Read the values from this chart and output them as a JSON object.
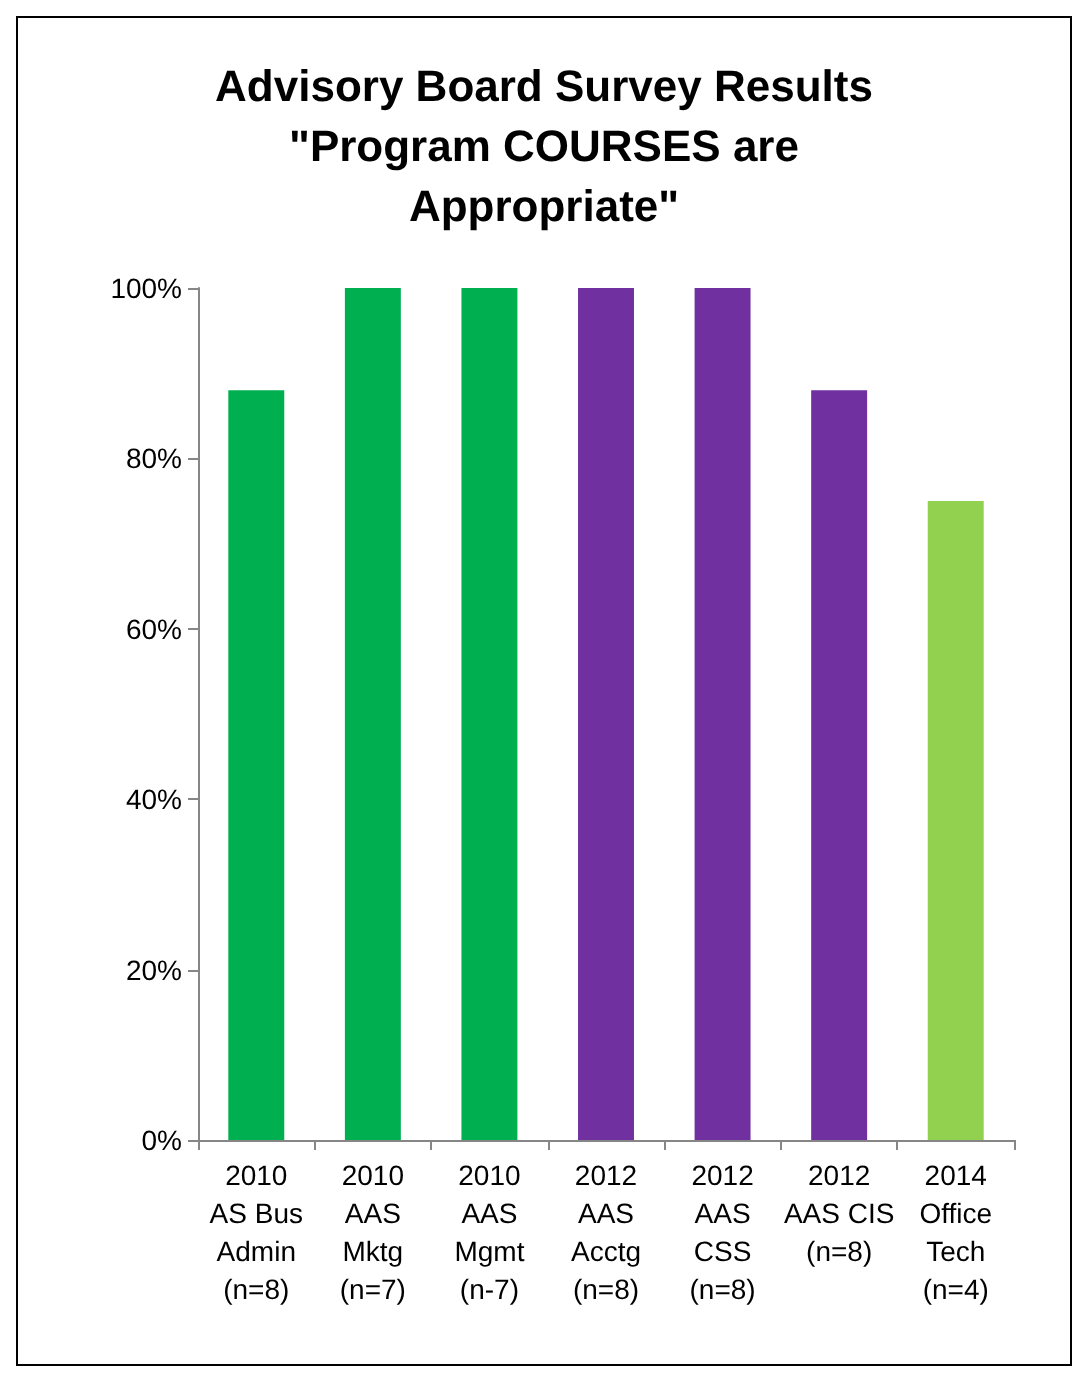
{
  "chart_data": {
    "type": "bar",
    "title": "Advisory Board Survey Results\n\"Program COURSES are\nAppropriate\"",
    "categories": [
      "2010\nAS Bus\nAdmin\n(n=8)",
      "2010\nAAS\nMktg\n(n=7)",
      "2010\nAAS\nMgmt\n(n-7)",
      "2012\nAAS\nAcctg\n(n=8)",
      "2012\nAAS\nCSS\n(n=8)",
      "2012\nAAS CIS\n(n=8)",
      "2014\nOffice\nTech\n(n=4)"
    ],
    "values": [
      88,
      100,
      100,
      100,
      100,
      88,
      75
    ],
    "colors": [
      "#00b050",
      "#00b050",
      "#00b050",
      "#7030a0",
      "#7030a0",
      "#7030a0",
      "#92d050"
    ],
    "ylim": [
      0,
      100
    ],
    "yticks": [
      {
        "value": 0,
        "label": "0%"
      },
      {
        "value": 20,
        "label": "20%"
      },
      {
        "value": 40,
        "label": "40%"
      },
      {
        "value": 60,
        "label": "60%"
      },
      {
        "value": 80,
        "label": "80%"
      },
      {
        "value": 100,
        "label": "100%"
      }
    ],
    "grid": false
  }
}
